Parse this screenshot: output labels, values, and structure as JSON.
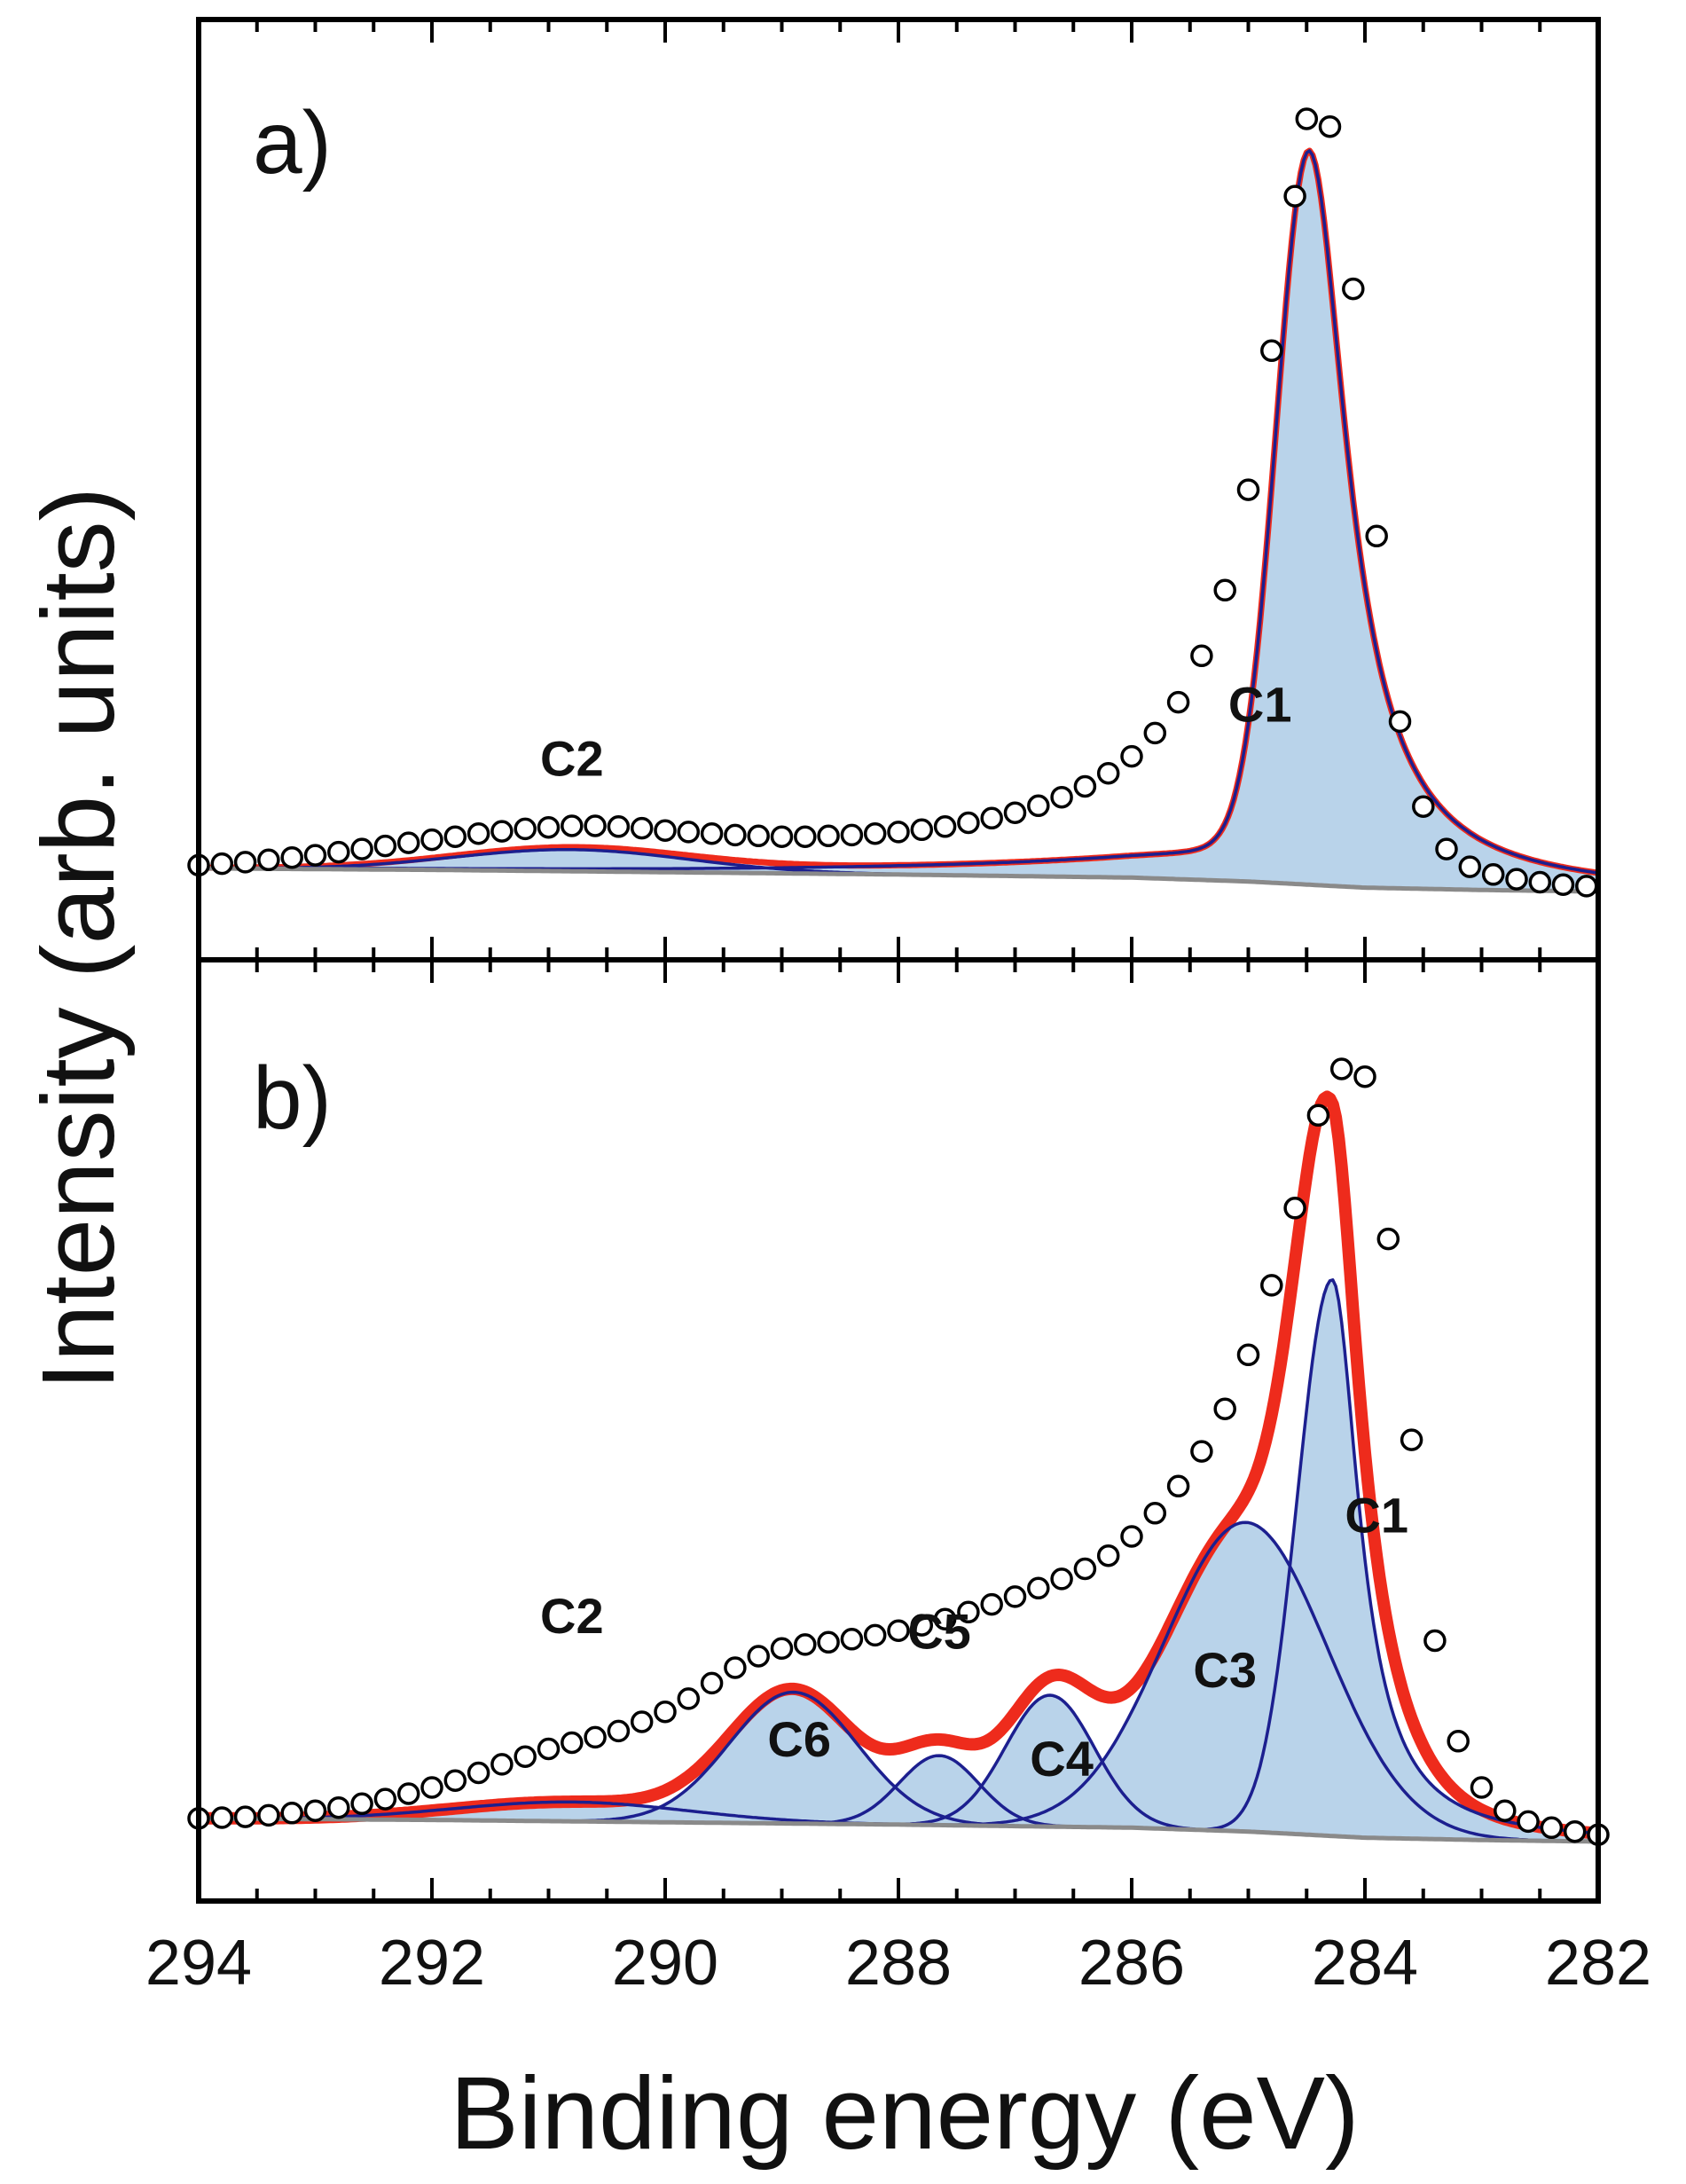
{
  "chart_data": {
    "type": "line",
    "title": "",
    "xlabel": "Binding energy (eV)",
    "ylabel": "Intensity (arb. units)",
    "xlim": [
      294,
      282
    ],
    "xticks": [
      294,
      292,
      290,
      288,
      286,
      284,
      282
    ],
    "ylim": [
      0,
      1.05
    ],
    "grid": false,
    "legend": "none",
    "panels": [
      {
        "label": "a)",
        "background": {
          "x": [
            294,
            292,
            290,
            288,
            286,
            285,
            284,
            283,
            282
          ],
          "y": [
            0.03,
            0.028,
            0.025,
            0.022,
            0.018,
            0.013,
            0.005,
            0.002,
            0.0
          ]
        },
        "components": [
          {
            "name": "C1",
            "center": 284.48,
            "amplitude": 0.95,
            "sigma_low": 0.28,
            "gamma_high": 0.4,
            "tail": 0.06,
            "tail_decay": 2.2,
            "label_pos": [
              284.9,
              0.22
            ]
          },
          {
            "name": "C2",
            "center": 290.8,
            "amplitude": 0.028,
            "sigma": 1.0,
            "label_pos": [
              290.8,
              0.15
            ]
          }
        ],
        "experimental_points": {
          "x": [
            294.0,
            293.8,
            293.6,
            293.4,
            293.2,
            293.0,
            292.8,
            292.6,
            292.4,
            292.2,
            292.0,
            291.8,
            291.6,
            291.4,
            291.2,
            291.0,
            290.8,
            290.6,
            290.4,
            290.2,
            290.0,
            289.8,
            289.6,
            289.4,
            289.2,
            289.0,
            288.8,
            288.6,
            288.4,
            288.2,
            288.0,
            287.8,
            287.6,
            287.4,
            287.2,
            287.0,
            286.8,
            286.6,
            286.4,
            286.2,
            286.0,
            285.8,
            285.6,
            285.4,
            285.2,
            285.0,
            284.8,
            284.6,
            284.5,
            284.3,
            284.1,
            283.9,
            283.7,
            283.5,
            283.3,
            283.1,
            282.9,
            282.7,
            282.5,
            282.3,
            282.1
          ],
          "y": [
            0.034,
            0.036,
            0.038,
            0.041,
            0.044,
            0.047,
            0.051,
            0.055,
            0.059,
            0.063,
            0.067,
            0.071,
            0.075,
            0.078,
            0.081,
            0.083,
            0.085,
            0.085,
            0.084,
            0.082,
            0.079,
            0.077,
            0.075,
            0.073,
            0.072,
            0.071,
            0.071,
            0.072,
            0.073,
            0.075,
            0.077,
            0.08,
            0.084,
            0.089,
            0.095,
            0.102,
            0.111,
            0.122,
            0.136,
            0.153,
            0.175,
            0.205,
            0.245,
            0.305,
            0.39,
            0.52,
            0.7,
            0.9,
            1.0,
            0.99,
            0.78,
            0.46,
            0.22,
            0.11,
            0.055,
            0.032,
            0.022,
            0.016,
            0.012,
            0.009,
            0.007
          ]
        }
      },
      {
        "label": "b)",
        "background": {
          "x": [
            294,
            292,
            290,
            288,
            286,
            285,
            284,
            283,
            282
          ],
          "y": [
            0.03,
            0.028,
            0.025,
            0.022,
            0.018,
            0.013,
            0.005,
            0.002,
            0.0
          ]
        },
        "components": [
          {
            "name": "C1",
            "center": 284.28,
            "amplitude": 0.72,
            "sigma_low": 0.3,
            "gamma_high": 0.28,
            "tail": 0.0,
            "tail_decay": 1.0,
            "label_pos": [
              283.9,
              0.4
            ]
          },
          {
            "name": "C3",
            "center": 285.02,
            "amplitude": 0.4,
            "sigma": 0.7,
            "label_pos": [
              285.2,
              0.2
            ]
          },
          {
            "name": "C4",
            "center": 286.7,
            "amplitude": 0.17,
            "sigma": 0.38,
            "label_pos": [
              286.6,
              0.085
            ]
          },
          {
            "name": "C5",
            "center": 287.65,
            "amplitude": 0.09,
            "sigma": 0.34,
            "label_pos": [
              287.65,
              0.25
            ]
          },
          {
            "name": "C6",
            "center": 288.9,
            "amplitude": 0.17,
            "sigma": 0.55,
            "label_pos": [
              288.85,
              0.11
            ]
          },
          {
            "name": "C2",
            "center": 290.8,
            "amplitude": 0.025,
            "sigma": 1.0,
            "label_pos": [
              290.8,
              0.27
            ]
          }
        ],
        "experimental_points": {
          "x": [
            294.0,
            293.8,
            293.6,
            293.4,
            293.2,
            293.0,
            292.8,
            292.6,
            292.4,
            292.2,
            292.0,
            291.8,
            291.6,
            291.4,
            291.2,
            291.0,
            290.8,
            290.6,
            290.4,
            290.2,
            290.0,
            289.8,
            289.6,
            289.4,
            289.2,
            289.0,
            288.8,
            288.6,
            288.4,
            288.2,
            288.0,
            287.8,
            287.6,
            287.4,
            287.2,
            287.0,
            286.8,
            286.6,
            286.4,
            286.2,
            286.0,
            285.8,
            285.6,
            285.4,
            285.2,
            285.0,
            284.8,
            284.6,
            284.4,
            284.2,
            284.0,
            283.8,
            283.6,
            283.4,
            283.2,
            283.0,
            282.8,
            282.6,
            282.4,
            282.2,
            282.0
          ],
          "y": [
            0.03,
            0.031,
            0.032,
            0.034,
            0.037,
            0.04,
            0.044,
            0.049,
            0.055,
            0.062,
            0.07,
            0.079,
            0.089,
            0.1,
            0.11,
            0.12,
            0.128,
            0.135,
            0.143,
            0.155,
            0.168,
            0.185,
            0.205,
            0.225,
            0.24,
            0.25,
            0.255,
            0.258,
            0.262,
            0.267,
            0.273,
            0.28,
            0.288,
            0.297,
            0.307,
            0.317,
            0.328,
            0.34,
            0.353,
            0.37,
            0.395,
            0.425,
            0.46,
            0.505,
            0.56,
            0.63,
            0.72,
            0.82,
            0.94,
            1.0,
            0.99,
            0.78,
            0.52,
            0.26,
            0.13,
            0.07,
            0.04,
            0.026,
            0.018,
            0.013,
            0.009
          ]
        }
      }
    ]
  },
  "colors": {
    "fill": "#b9d3ea",
    "component_line": "#1c1f8f",
    "envelope": "#ee2b1c",
    "background_line": "#8a8a8a",
    "marker_edge": "#000000",
    "marker_fill": "#ffffff",
    "axes": "#000000"
  }
}
